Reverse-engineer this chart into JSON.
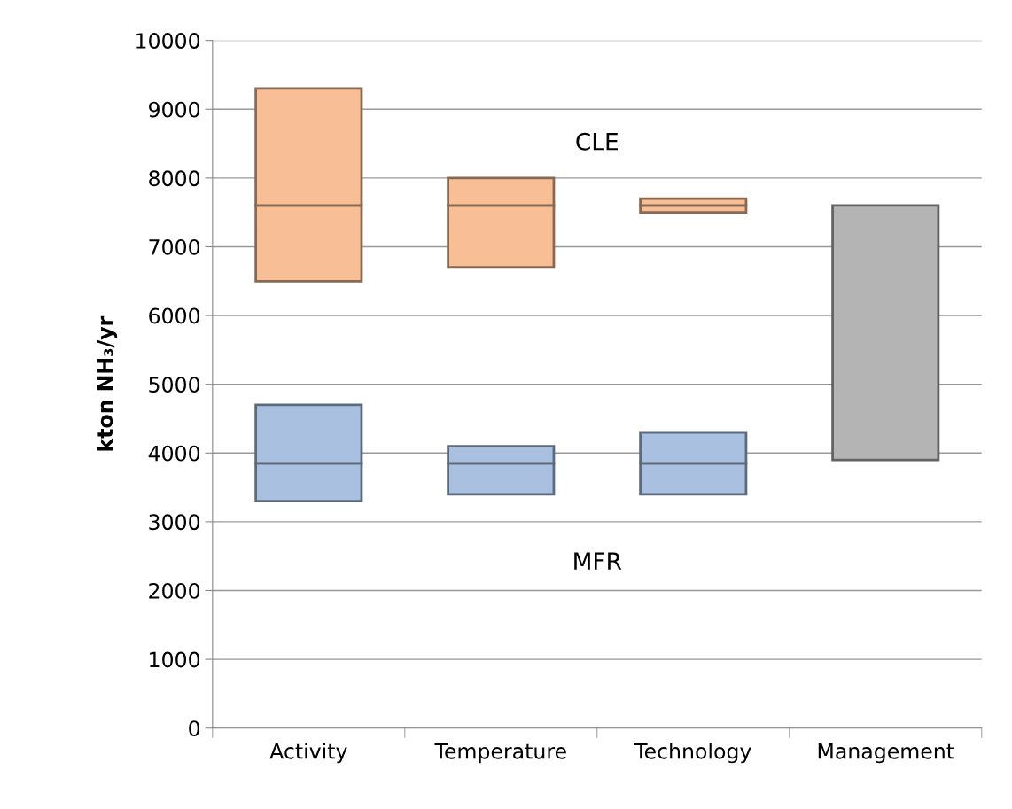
{
  "chart_data": {
    "type": "bar",
    "ylabel": "kton NH₃/yr",
    "categories": [
      "Activity",
      "Temperature",
      "Technology",
      "Management"
    ],
    "series": [
      {
        "color": "#f8bf96",
        "base": [
          6500,
          6700,
          7500,
          null
        ],
        "values": [
          1100,
          900,
          100,
          null
        ]
      },
      {
        "color": "#f8bf96",
        "base": [
          7600,
          7600,
          7600,
          null
        ],
        "values": [
          1700,
          400,
          100,
          null
        ]
      },
      {
        "color": "#a9c0e0",
        "base": [
          3300,
          3400,
          3400,
          null
        ],
        "values": [
          550,
          450,
          450,
          null
        ]
      },
      {
        "color": "#a9c0e0",
        "base": [
          3850,
          3850,
          3850,
          null
        ],
        "values": [
          850,
          250,
          450,
          null
        ]
      },
      {
        "color": "#b4b4b4",
        "base": [
          null,
          null,
          null,
          3900
        ],
        "values": [
          null,
          null,
          null,
          3700
        ]
      }
    ],
    "annotations": [
      "CLE",
      "MFR"
    ],
    "ylim": [
      0,
      10000
    ],
    "yticks": [
      0,
      1000,
      2000,
      3000,
      4000,
      5000,
      6000,
      7000,
      8000,
      9000,
      10000
    ],
    "grid": "y",
    "legend": false
  }
}
